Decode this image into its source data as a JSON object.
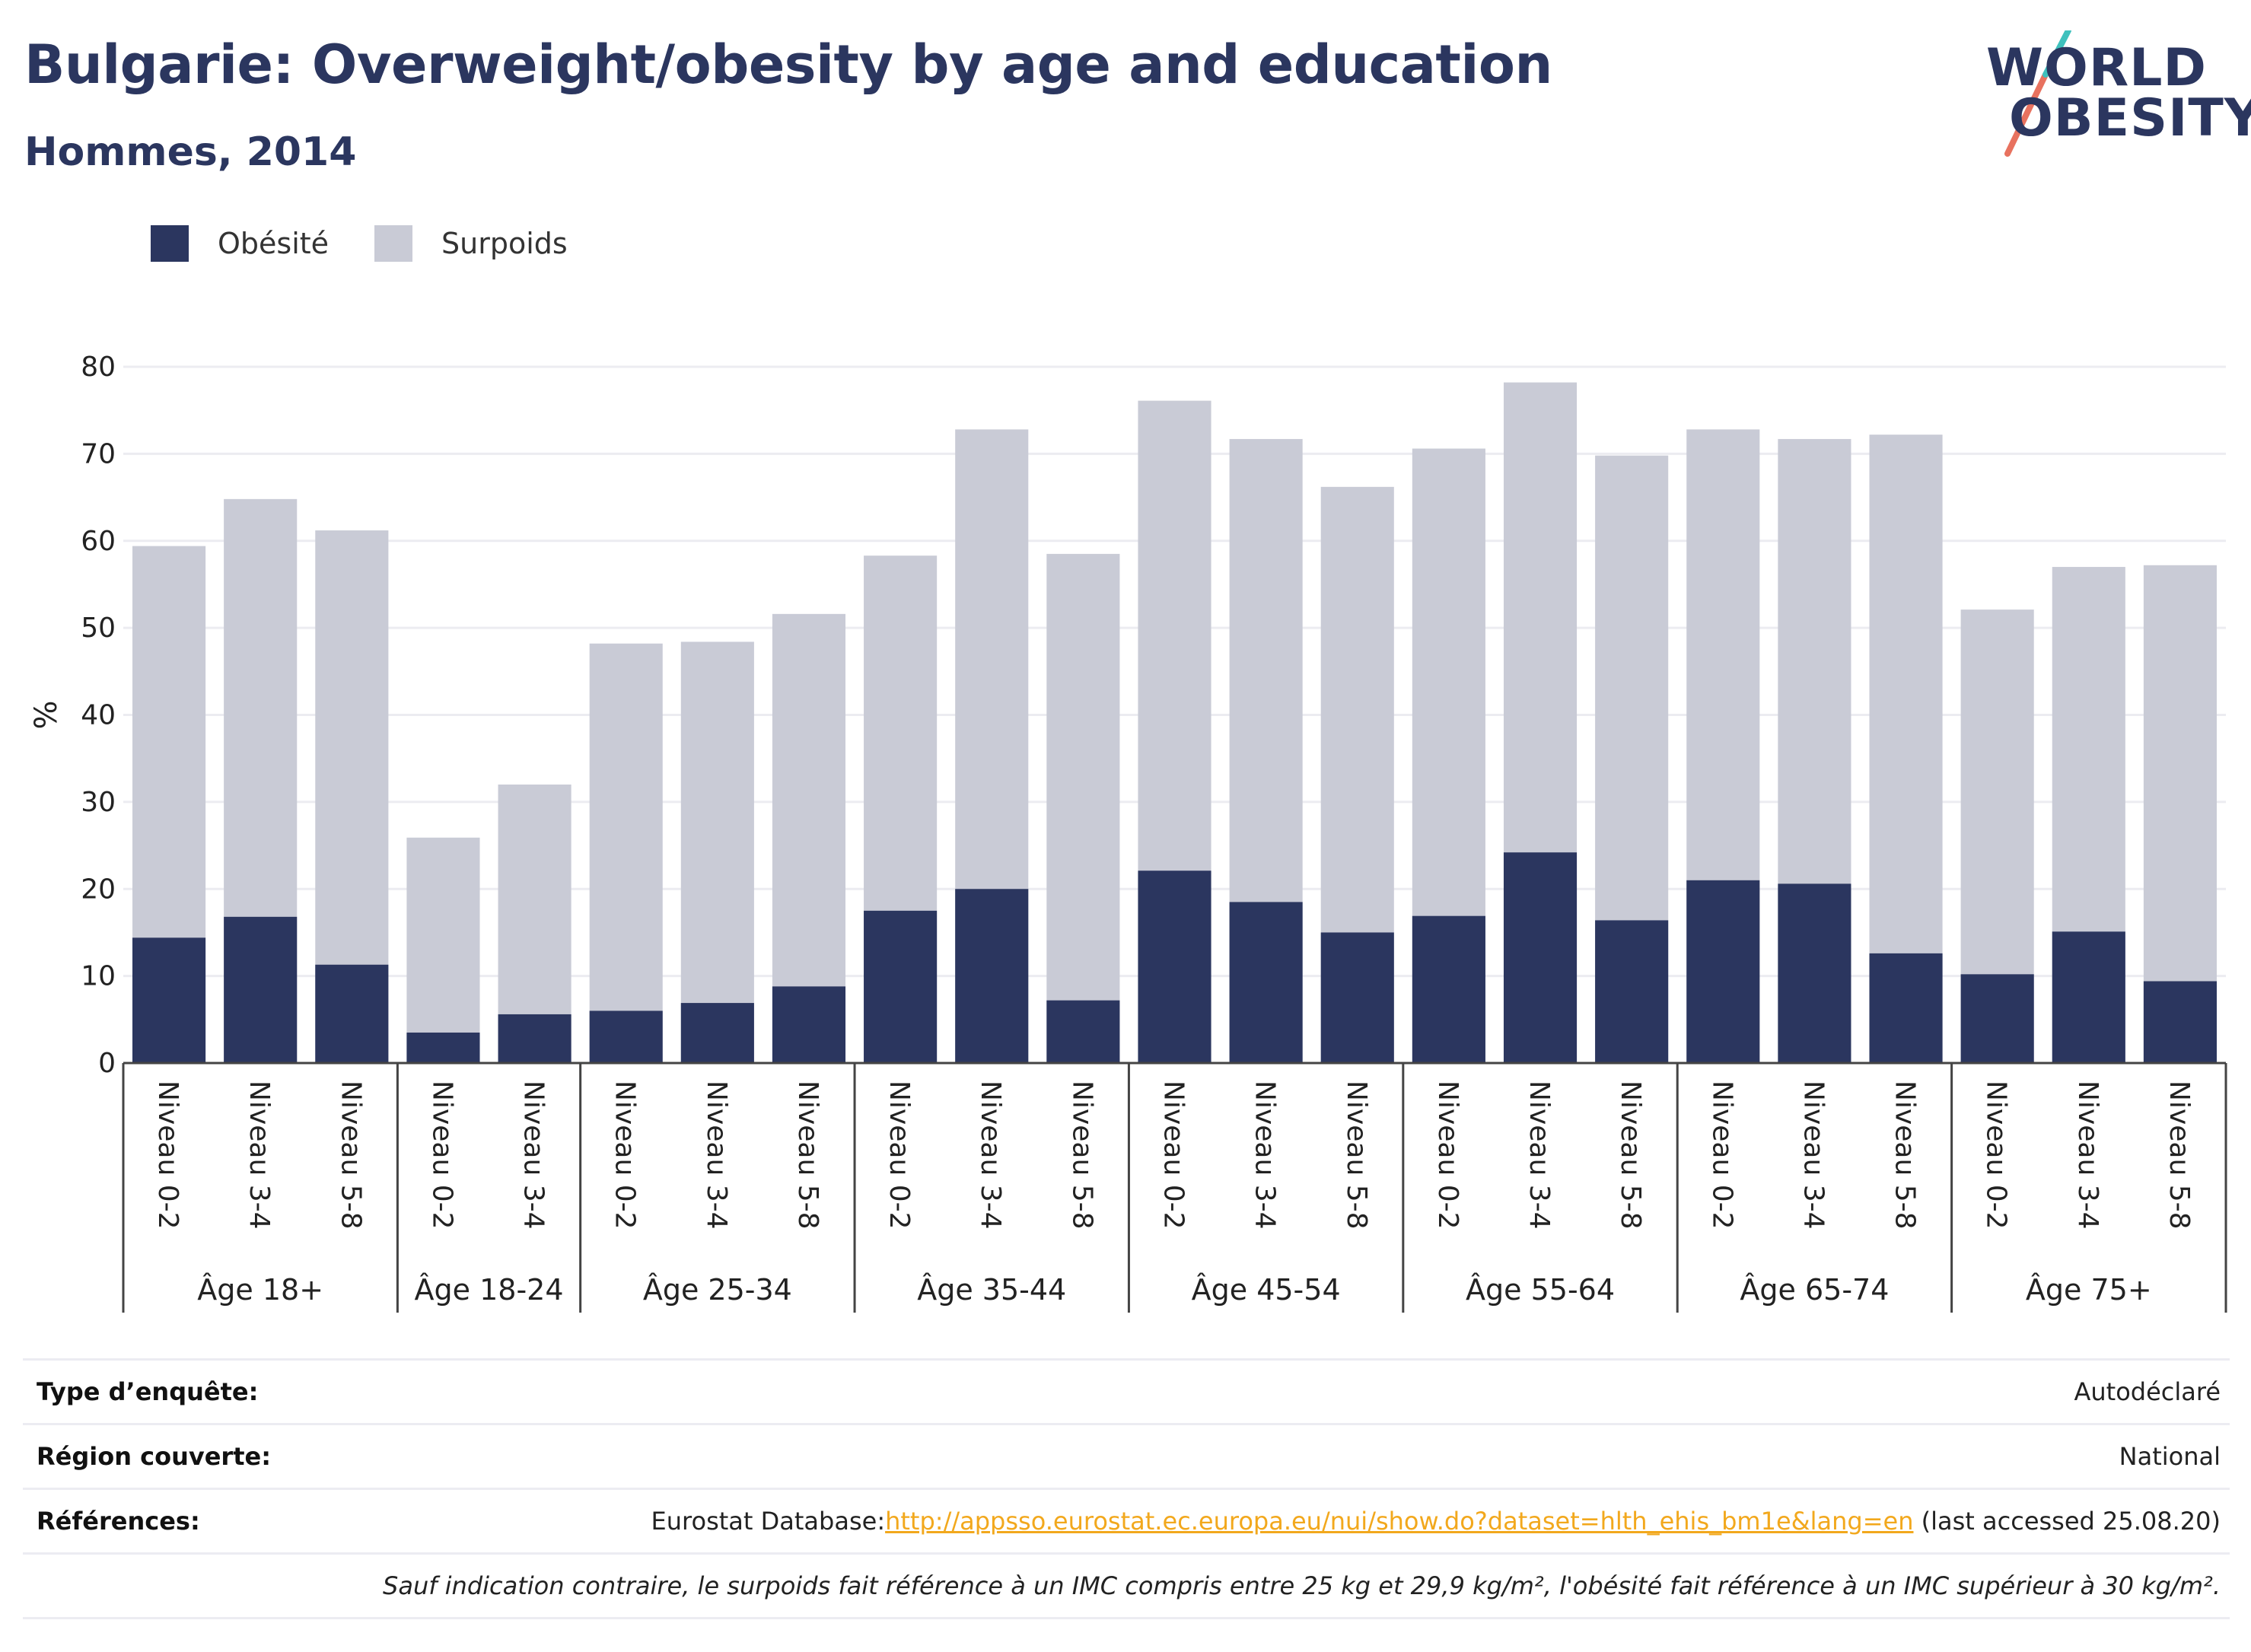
{
  "header": {
    "title": "Bulgarie: Overweight/obesity by age and education",
    "subtitle": "Hommes, 2014"
  },
  "logo": {
    "line1": "WORLD",
    "line2": "OBESITY"
  },
  "legend": [
    {
      "label": "Obésité",
      "color": "#2b365f"
    },
    {
      "label": "Surpoids",
      "color": "#c9cbd6"
    }
  ],
  "chart_data": {
    "type": "bar",
    "stacking": "overlay",
    "ylabel": "%",
    "ylim": [
      0,
      80
    ],
    "yticks": [
      0,
      10,
      20,
      30,
      40,
      50,
      60,
      70,
      80
    ],
    "grid": true,
    "legend_position": "top-left",
    "groups": [
      {
        "label": "Âge 18+",
        "categories": [
          "Niveau 0-2",
          "Niveau 3-4",
          "Niveau 5-8"
        ]
      },
      {
        "label": "Âge 18-24",
        "categories": [
          "Niveau 0-2",
          "Niveau 3-4"
        ]
      },
      {
        "label": "Âge 25-34",
        "categories": [
          "Niveau 0-2",
          "Niveau 3-4",
          "Niveau 5-8"
        ]
      },
      {
        "label": "Âge 35-44",
        "categories": [
          "Niveau 0-2",
          "Niveau 3-4",
          "Niveau 5-8"
        ]
      },
      {
        "label": "Âge 45-54",
        "categories": [
          "Niveau 0-2",
          "Niveau 3-4",
          "Niveau 5-8"
        ]
      },
      {
        "label": "Âge 55-64",
        "categories": [
          "Niveau 0-2",
          "Niveau 3-4",
          "Niveau 5-8"
        ]
      },
      {
        "label": "Âge 65-74",
        "categories": [
          "Niveau 0-2",
          "Niveau 3-4",
          "Niveau 5-8"
        ]
      },
      {
        "label": "Âge 75+",
        "categories": [
          "Niveau 0-2",
          "Niveau 3-4",
          "Niveau 5-8"
        ]
      }
    ],
    "series": [
      {
        "name": "Surpoids",
        "color": "#c9cbd6",
        "values": [
          59.4,
          64.8,
          61.2,
          25.9,
          32.0,
          48.2,
          48.4,
          51.6,
          58.3,
          72.8,
          58.5,
          76.1,
          71.7,
          66.2,
          70.6,
          78.2,
          69.8,
          72.8,
          71.7,
          72.2,
          52.1,
          57.0,
          57.2
        ]
      },
      {
        "name": "Obésité",
        "color": "#2b365f",
        "values": [
          14.4,
          16.8,
          11.3,
          3.5,
          5.6,
          6.0,
          6.9,
          8.8,
          17.5,
          20.0,
          7.2,
          22.1,
          18.5,
          15.0,
          16.9,
          24.2,
          16.4,
          21.0,
          20.6,
          12.6,
          10.2,
          15.1,
          9.4
        ]
      }
    ]
  },
  "footer": {
    "rows": [
      {
        "key": "Type d’enquête:",
        "value": "Autodéclaré"
      },
      {
        "key": "Région couverte:",
        "value": "National"
      }
    ],
    "references": {
      "key": "Références:",
      "prefix": "Eurostat Database:",
      "link": "http://appsso.eurostat.ec.europa.eu/nui/show.do?dataset=hlth_ehis_bm1e&lang=en",
      "suffix": " (last accessed 25.08.20)"
    },
    "note": "Sauf indication contraire, le surpoids fait référence à un IMC compris entre 25 kg et 29,9 kg/m², l'obésité fait référence à un IMC supérieur à 30 kg/m²."
  }
}
